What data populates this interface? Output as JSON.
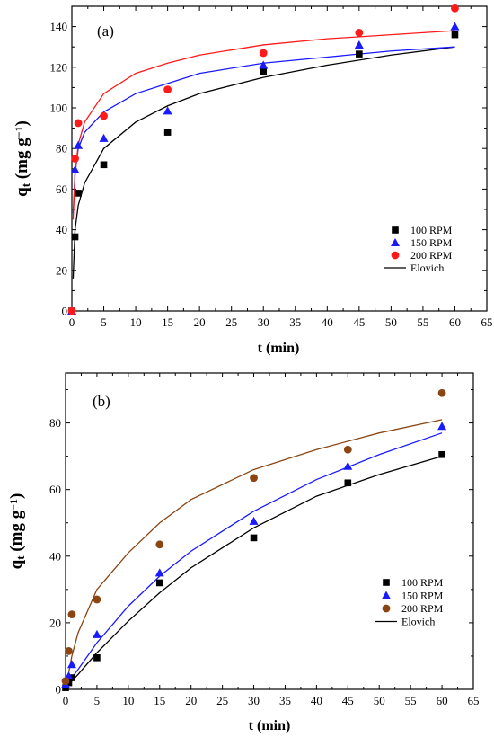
{
  "chart_data": [
    {
      "type": "scatter",
      "panel_label": "(a)",
      "xlabel": "t (min)",
      "ylabel_main": "q",
      "ylabel_sub": "t",
      "ylabel_unit": " (mg g",
      "ylabel_exp": "−1",
      "ylabel_close": ")",
      "xlim": [
        0,
        65
      ],
      "ylim": [
        0,
        150
      ],
      "xticks": [
        0,
        5,
        10,
        15,
        20,
        25,
        30,
        35,
        40,
        45,
        50,
        55,
        60,
        65
      ],
      "yticks": [
        0,
        20,
        40,
        60,
        80,
        100,
        120,
        140
      ],
      "legend_position": "bottom-right",
      "series": [
        {
          "name": "100 RPM",
          "marker": "square",
          "color": "#000000",
          "x": [
            0,
            0.5,
            1,
            5,
            15,
            30,
            45,
            60
          ],
          "y": [
            0,
            36.5,
            58,
            72,
            88,
            118,
            126.5,
            136
          ]
        },
        {
          "name": "150 RPM",
          "marker": "triangle",
          "color": "#1a1aff",
          "x": [
            0,
            0.5,
            1,
            5,
            15,
            30,
            45,
            60
          ],
          "y": [
            0,
            69.5,
            81.5,
            85,
            98.5,
            121,
            131,
            140
          ]
        },
        {
          "name": "200 RPM",
          "marker": "circle",
          "color": "#ff1a1a",
          "x": [
            0,
            0.5,
            1,
            5,
            15,
            30,
            45,
            60
          ],
          "y": [
            0,
            75,
            92.5,
            96,
            109,
            127,
            137,
            149
          ]
        }
      ],
      "fits": [
        {
          "color": "#000000",
          "x": [
            0.2,
            0.5,
            1,
            2,
            5,
            10,
            15,
            20,
            30,
            40,
            50,
            60
          ],
          "y": [
            16,
            40,
            52,
            63,
            80,
            93,
            101,
            107,
            115,
            121,
            126,
            130
          ]
        },
        {
          "color": "#1a1aff",
          "x": [
            0.2,
            0.5,
            1,
            2,
            5,
            10,
            15,
            20,
            30,
            40,
            50,
            60
          ],
          "y": [
            48,
            68,
            80,
            88,
            98,
            107,
            112,
            117,
            122,
            125,
            128,
            130
          ]
        },
        {
          "color": "#ff1a1a",
          "x": [
            0.2,
            0.5,
            1,
            2,
            5,
            10,
            15,
            20,
            30,
            40,
            50,
            60
          ],
          "y": [
            45,
            67,
            82,
            93,
            107,
            117,
            122,
            126,
            131,
            134,
            136,
            138
          ]
        }
      ],
      "fit_legend_label": "Elovich",
      "fit_legend_color": "#000000"
    },
    {
      "type": "scatter",
      "panel_label": "(b)",
      "xlabel": "t (min)",
      "ylabel_main": "q",
      "ylabel_sub": "t",
      "ylabel_unit": " (mg g",
      "ylabel_exp": "−1",
      "ylabel_close": ")",
      "xlim": [
        0,
        65
      ],
      "ylim": [
        0,
        95
      ],
      "xticks": [
        0,
        5,
        10,
        15,
        20,
        25,
        30,
        35,
        40,
        45,
        50,
        55,
        60,
        65
      ],
      "yticks": [
        0,
        20,
        40,
        60,
        80
      ],
      "legend_position": "bottom-right",
      "series": [
        {
          "name": "100 RPM",
          "marker": "square",
          "color": "#000000",
          "x": [
            0,
            0.5,
            1,
            5,
            15,
            30,
            45,
            60
          ],
          "y": [
            0.5,
            2,
            3.5,
            9.5,
            32,
            45.5,
            62,
            70.5
          ]
        },
        {
          "name": "150 RPM",
          "marker": "triangle",
          "color": "#1a1aff",
          "x": [
            0,
            0.5,
            1,
            5,
            15,
            30,
            45,
            60
          ],
          "y": [
            1.5,
            4,
            7.5,
            16.5,
            35,
            50.5,
            67,
            79
          ]
        },
        {
          "name": "200 RPM",
          "marker": "circle",
          "color": "#8b4513",
          "x": [
            0,
            0.5,
            1,
            5,
            15,
            30,
            45,
            60
          ],
          "y": [
            2.5,
            11.5,
            22.5,
            27,
            43.5,
            63.5,
            72,
            89
          ]
        }
      ],
      "fits": [
        {
          "color": "#000000",
          "x": [
            0.1,
            1,
            2,
            5,
            10,
            15,
            20,
            30,
            40,
            50,
            60
          ],
          "y": [
            0.5,
            2.5,
            4.5,
            11,
            20.5,
            29,
            36.5,
            48.5,
            58,
            64.5,
            70
          ]
        },
        {
          "color": "#1a1aff",
          "x": [
            0.1,
            1,
            2,
            5,
            10,
            15,
            20,
            30,
            40,
            50,
            60
          ],
          "y": [
            1,
            3.5,
            6,
            14,
            25,
            34,
            41.5,
            53.5,
            63,
            70.5,
            77
          ]
        },
        {
          "color": "#8b4513",
          "x": [
            0.1,
            0.5,
            1,
            2,
            5,
            10,
            15,
            20,
            30,
            40,
            50,
            60
          ],
          "y": [
            1,
            5,
            10,
            17,
            30,
            41,
            50,
            57,
            66,
            72,
            77,
            81
          ]
        }
      ],
      "fit_legend_label": "Elovich",
      "fit_legend_color": "#000000"
    }
  ]
}
